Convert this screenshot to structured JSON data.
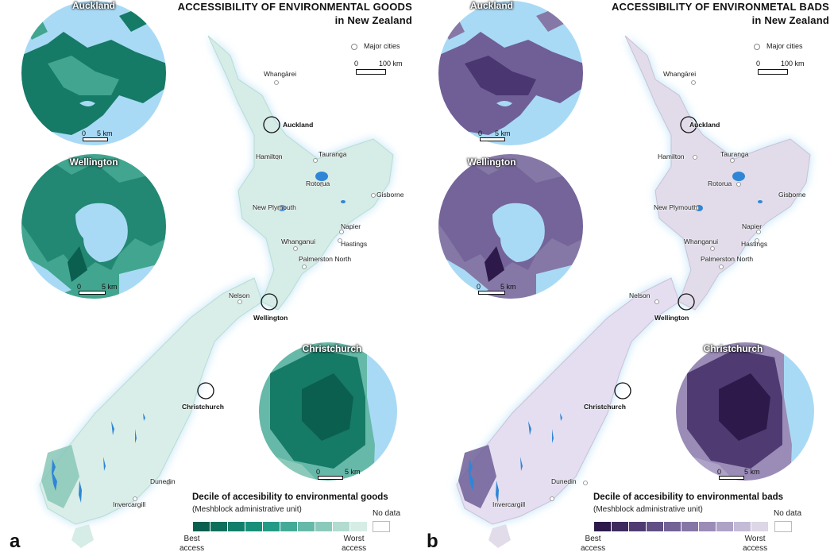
{
  "panels": [
    {
      "letter": "a",
      "title_line1": "ACCESSIBILITY OF ENVIRONMENTAL GOODS",
      "title_line2": "in New Zealand",
      "major_cities_label": "Major cities",
      "scale_zero": "0",
      "scale_label": "100 km",
      "insets": [
        {
          "name": "Auckland",
          "scale_zero": "0",
          "scale_label": "5 km"
        },
        {
          "name": "Wellington",
          "scale_zero": "0",
          "scale_label": "5 km"
        },
        {
          "name": "Christchurch",
          "scale_zero": "0",
          "scale_label": "5 km"
        }
      ],
      "legend": {
        "title": "Decile of accesibility to environmental goods",
        "subtitle": "(Meshblock administrative unit)",
        "best_label_1": "Best",
        "best_label_2": "access",
        "worst_label_1": "Worst",
        "worst_label_2": "access",
        "no_data": "No data",
        "colors": [
          "#0b5f4f",
          "#0f6f5d",
          "#127f6b",
          "#178f79",
          "#239b86",
          "#44aa97",
          "#66b9a8",
          "#8bcaba",
          "#b2dccf",
          "#d6ede6"
        ]
      },
      "palette": {
        "land": "#d6ece6",
        "land_dark": "#88c7b7",
        "inset_dark": "#157a66",
        "inset_mid": "#42a58f"
      }
    },
    {
      "letter": "b",
      "title_line1": "ACCESSIBILITY OF ENVIRONMETAL BADS",
      "title_line2": "in New Zealand",
      "major_cities_label": "Major cities",
      "scale_zero": "0",
      "scale_label": "100 km",
      "insets": [
        {
          "name": "Auckland",
          "scale_zero": "0",
          "scale_label": "5 km"
        },
        {
          "name": "Wellington",
          "scale_zero": "0",
          "scale_label": "5 km"
        },
        {
          "name": "Christchurch",
          "scale_zero": "0",
          "scale_label": "5 km"
        }
      ],
      "legend": {
        "title": "Decile of accesibility to environmental bads",
        "subtitle": "(Meshblock administrative unit)",
        "best_label_1": "Best",
        "best_label_2": "access",
        "worst_label_1": "Worst",
        "worst_label_2": "access",
        "no_data": "No data",
        "colors": [
          "#2d1a4a",
          "#3e2a5e",
          "#4f3b72",
          "#614e85",
          "#736296",
          "#8676a6",
          "#9a8cb7",
          "#aea2c7",
          "#c4bbd6",
          "#dcd6e6"
        ]
      },
      "palette": {
        "land": "#e2dcea",
        "land_dark": "#a99dc0",
        "inset_dark": "#4a3670",
        "inset_mid": "#8678a6"
      }
    }
  ],
  "cities": [
    "Whangārei",
    "Auckland",
    "Hamilton",
    "Tauranga",
    "Rotorua",
    "Gisborne",
    "New Plymouth",
    "Napier",
    "Hastings",
    "Whanganui",
    "Palmerston North",
    "Nelson",
    "Wellington",
    "Christchurch",
    "Dunedin",
    "Invercargill"
  ],
  "colors": {
    "water": "#a9daf5",
    "lakes": "#2f86d6",
    "outline": "#111111"
  }
}
